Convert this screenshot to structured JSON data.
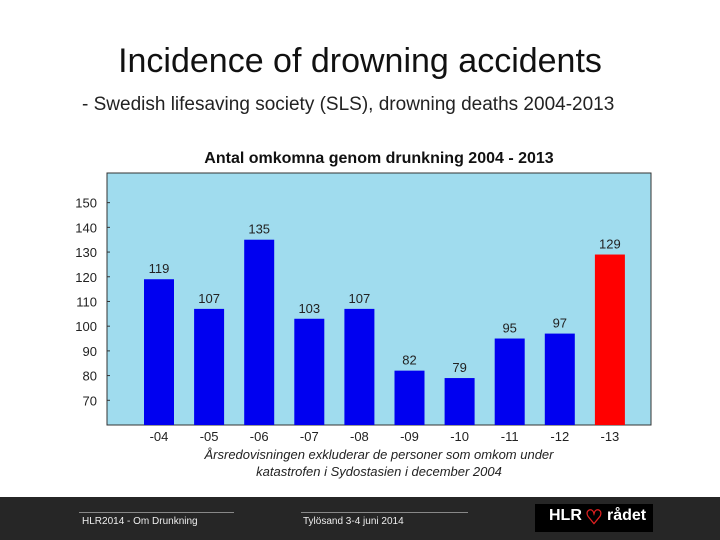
{
  "slide": {
    "title": "Incidence of drowning accidents",
    "subtitle": "- Swedish lifesaving society (SLS), drowning deaths 2004-2013"
  },
  "chart_data": {
    "type": "bar",
    "title": "Antal omkomna genom drunkning 2004 - 2013",
    "categories": [
      "-04",
      "-05",
      "-06",
      "-07",
      "-08",
      "-09",
      "-10",
      "-11",
      "-12",
      "-13"
    ],
    "values": [
      119,
      107,
      135,
      103,
      107,
      82,
      79,
      95,
      97,
      129
    ],
    "data_labels": [
      "119",
      "107",
      "135",
      "103",
      "107",
      "82",
      "79",
      "95",
      "97",
      "129"
    ],
    "yticks": [
      70,
      80,
      90,
      100,
      110,
      120,
      130,
      140,
      150
    ],
    "ylim": [
      60,
      162
    ],
    "grid": false,
    "xlabel": "Årsredovisningen exkluderar de personer som omkom under katastrofen i Sydostasien i december 2004",
    "xlabel_lines": [
      "Årsredovisningen exkluderar de personer som omkom under",
      "katastrofen i Sydostasien i december 2004"
    ],
    "colors": {
      "background": "#a0dcee",
      "bar": "#0000f0",
      "highlight_bar": "#ff0000",
      "highlight_index": 9
    }
  },
  "footer": {
    "left_text": "HLR2014 - Om Drunkning",
    "center_text": "Tylösand 3-4 juni 2014",
    "logo_text": "HLR rådet"
  }
}
